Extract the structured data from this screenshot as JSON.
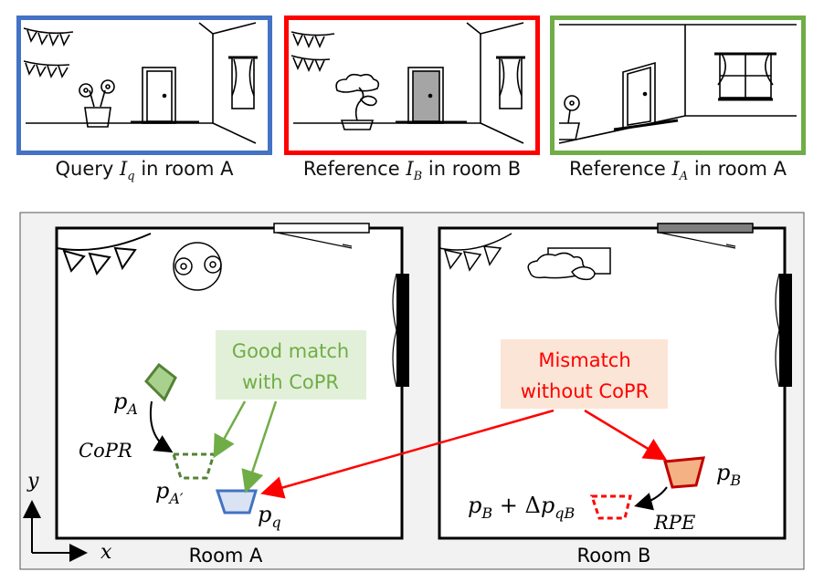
{
  "panels": {
    "query": {
      "prefix": "Query",
      "sym": "I",
      "sub": "q",
      "suffix": "in room A",
      "border_color": "#4472c4"
    },
    "ref_b": {
      "prefix": "Reference",
      "sym": "I",
      "sub": "B",
      "suffix": "in room B",
      "border_color": "#ff0000"
    },
    "ref_a": {
      "prefix": "Reference",
      "sym": "I",
      "sub": "A",
      "suffix": "in room A",
      "border_color": "#70ad47"
    }
  },
  "map": {
    "room_a_label": "Room A",
    "room_b_label": "Room B",
    "axis_x": "x",
    "axis_y": "y",
    "good_match": {
      "line1": "Good match",
      "line2": "with CoPR",
      "color": "#70ad47",
      "bg": "#e2f0d9"
    },
    "mismatch": {
      "line1": "Mismatch",
      "line2": "without CoPR",
      "color": "#ff0000",
      "bg": "#fbe5d6"
    },
    "copr_label": "CoPR",
    "rpe_label": "RPE",
    "pA": {
      "base": "p",
      "sub": "A"
    },
    "pA_prime": {
      "base": "p",
      "sub": "A′"
    },
    "pq": {
      "base": "p",
      "sub": "q"
    },
    "pB": {
      "base": "p",
      "sub": "B"
    },
    "pB_delta": {
      "base": "p",
      "sub": "B",
      "op": " + Δ",
      "base2": "p",
      "sub2": "qB"
    }
  }
}
